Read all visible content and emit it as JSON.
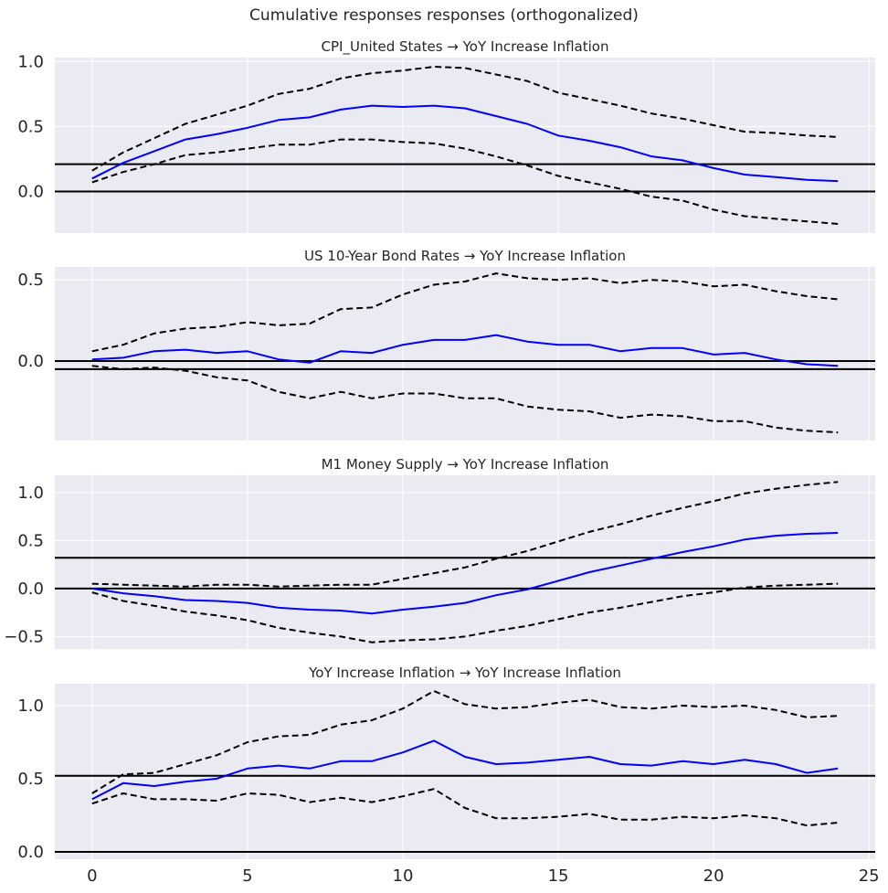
{
  "title": "Cumulative responses responses (orthogonalized)",
  "chart_data": [
    {
      "type": "line",
      "title": "CPI_United States → YoY Increase Inflation",
      "x": [
        0,
        1,
        2,
        3,
        4,
        5,
        6,
        7,
        8,
        9,
        10,
        11,
        12,
        13,
        14,
        15,
        16,
        17,
        18,
        19,
        20,
        21,
        22,
        23,
        24
      ],
      "ylim": [
        -0.32,
        1.03
      ],
      "yticks": [
        0.0,
        0.5,
        1.0
      ],
      "ytick_labels": [
        "0.0",
        "0.5",
        "1.0"
      ],
      "hlines": [
        0.0,
        0.21
      ],
      "series": [
        {
          "role": "response",
          "color": "#0000ff",
          "style": "solid",
          "values": [
            0.1,
            0.22,
            0.31,
            0.4,
            0.44,
            0.49,
            0.55,
            0.57,
            0.63,
            0.66,
            0.65,
            0.66,
            0.64,
            0.58,
            0.52,
            0.43,
            0.39,
            0.34,
            0.27,
            0.24,
            0.18,
            0.13,
            0.11,
            0.09,
            0.08
          ]
        },
        {
          "role": "upper",
          "color": "#000000",
          "style": "dashed",
          "values": [
            0.16,
            0.3,
            0.41,
            0.52,
            0.59,
            0.66,
            0.75,
            0.79,
            0.87,
            0.91,
            0.93,
            0.96,
            0.95,
            0.9,
            0.85,
            0.76,
            0.71,
            0.66,
            0.6,
            0.56,
            0.51,
            0.46,
            0.45,
            0.43,
            0.42
          ]
        },
        {
          "role": "lower",
          "color": "#000000",
          "style": "dashed",
          "values": [
            0.07,
            0.15,
            0.21,
            0.28,
            0.3,
            0.33,
            0.36,
            0.36,
            0.4,
            0.4,
            0.38,
            0.37,
            0.33,
            0.27,
            0.2,
            0.12,
            0.07,
            0.02,
            -0.04,
            -0.07,
            -0.14,
            -0.19,
            -0.21,
            -0.23,
            -0.25
          ]
        }
      ]
    },
    {
      "type": "line",
      "title": "US 10-Year Bond Rates  → YoY Increase Inflation",
      "x": [
        0,
        1,
        2,
        3,
        4,
        5,
        6,
        7,
        8,
        9,
        10,
        11,
        12,
        13,
        14,
        15,
        16,
        17,
        18,
        19,
        20,
        21,
        22,
        23,
        24
      ],
      "ylim": [
        -0.49,
        0.58
      ],
      "yticks": [
        0.0,
        0.5
      ],
      "ytick_labels": [
        "0.0",
        "0.5"
      ],
      "hlines": [
        0.0,
        -0.05
      ],
      "series": [
        {
          "role": "response",
          "color": "#0000ff",
          "style": "solid",
          "values": [
            0.01,
            0.02,
            0.06,
            0.07,
            0.05,
            0.06,
            0.01,
            -0.01,
            0.06,
            0.05,
            0.1,
            0.13,
            0.13,
            0.16,
            0.12,
            0.1,
            0.1,
            0.06,
            0.08,
            0.08,
            0.04,
            0.05,
            0.01,
            -0.02,
            -0.03
          ]
        },
        {
          "role": "upper",
          "color": "#000000",
          "style": "dashed",
          "values": [
            0.06,
            0.1,
            0.17,
            0.2,
            0.21,
            0.24,
            0.22,
            0.23,
            0.32,
            0.33,
            0.41,
            0.47,
            0.49,
            0.54,
            0.51,
            0.5,
            0.51,
            0.48,
            0.5,
            0.49,
            0.46,
            0.47,
            0.43,
            0.4,
            0.38
          ]
        },
        {
          "role": "lower",
          "color": "#000000",
          "style": "dashed",
          "values": [
            -0.03,
            -0.05,
            -0.04,
            -0.06,
            -0.1,
            -0.12,
            -0.19,
            -0.23,
            -0.19,
            -0.23,
            -0.2,
            -0.2,
            -0.23,
            -0.23,
            -0.28,
            -0.3,
            -0.31,
            -0.35,
            -0.33,
            -0.34,
            -0.37,
            -0.37,
            -0.41,
            -0.43,
            -0.44
          ]
        }
      ]
    },
    {
      "type": "line",
      "title": "M1 Money Supply → YoY Increase Inflation",
      "x": [
        0,
        1,
        2,
        3,
        4,
        5,
        6,
        7,
        8,
        9,
        10,
        11,
        12,
        13,
        14,
        15,
        16,
        17,
        18,
        19,
        20,
        21,
        22,
        23,
        24
      ],
      "ylim": [
        -0.63,
        1.18
      ],
      "yticks": [
        -0.5,
        0.0,
        0.5,
        1.0
      ],
      "ytick_labels": [
        "−0.5",
        "0.0",
        "0.5",
        "1.0"
      ],
      "hlines": [
        0.0,
        0.32
      ],
      "series": [
        {
          "role": "response",
          "color": "#0000ff",
          "style": "solid",
          "values": [
            0.0,
            -0.05,
            -0.08,
            -0.12,
            -0.13,
            -0.15,
            -0.2,
            -0.22,
            -0.23,
            -0.26,
            -0.22,
            -0.19,
            -0.15,
            -0.07,
            -0.01,
            0.08,
            0.17,
            0.24,
            0.31,
            0.38,
            0.44,
            0.51,
            0.55,
            0.57,
            0.58
          ]
        },
        {
          "role": "upper",
          "color": "#000000",
          "style": "dashed",
          "values": [
            0.05,
            0.04,
            0.03,
            0.02,
            0.04,
            0.04,
            0.02,
            0.03,
            0.04,
            0.04,
            0.1,
            0.16,
            0.22,
            0.31,
            0.39,
            0.49,
            0.59,
            0.67,
            0.76,
            0.84,
            0.91,
            0.99,
            1.04,
            1.08,
            1.11
          ]
        },
        {
          "role": "lower",
          "color": "#000000",
          "style": "dashed",
          "values": [
            -0.04,
            -0.13,
            -0.18,
            -0.24,
            -0.28,
            -0.33,
            -0.41,
            -0.46,
            -0.5,
            -0.56,
            -0.54,
            -0.53,
            -0.5,
            -0.44,
            -0.39,
            -0.32,
            -0.25,
            -0.2,
            -0.14,
            -0.08,
            -0.04,
            0.01,
            0.03,
            0.04,
            0.05
          ]
        }
      ]
    },
    {
      "type": "line",
      "title": "YoY Increase Inflation → YoY Increase Inflation",
      "x": [
        0,
        1,
        2,
        3,
        4,
        5,
        6,
        7,
        8,
        9,
        10,
        11,
        12,
        13,
        14,
        15,
        16,
        17,
        18,
        19,
        20,
        21,
        22,
        23,
        24
      ],
      "xlim": [
        -1.2,
        25.2
      ],
      "xticks": [
        0,
        5,
        10,
        15,
        20,
        25
      ],
      "ylim": [
        -0.05,
        1.15
      ],
      "yticks": [
        0.0,
        0.5,
        1.0
      ],
      "ytick_labels": [
        "0.0",
        "0.5",
        "1.0"
      ],
      "hlines": [
        0.0,
        0.52
      ],
      "series": [
        {
          "role": "response",
          "color": "#0000ff",
          "style": "solid",
          "values": [
            0.36,
            0.47,
            0.45,
            0.48,
            0.5,
            0.57,
            0.59,
            0.57,
            0.62,
            0.62,
            0.68,
            0.76,
            0.65,
            0.6,
            0.61,
            0.63,
            0.65,
            0.6,
            0.59,
            0.62,
            0.6,
            0.63,
            0.6,
            0.54,
            0.57
          ]
        },
        {
          "role": "upper",
          "color": "#000000",
          "style": "dashed",
          "values": [
            0.4,
            0.53,
            0.54,
            0.6,
            0.66,
            0.75,
            0.79,
            0.8,
            0.87,
            0.9,
            0.98,
            1.1,
            1.01,
            0.98,
            0.99,
            1.02,
            1.04,
            0.99,
            0.98,
            1.0,
            0.99,
            1.0,
            0.97,
            0.92,
            0.93
          ]
        },
        {
          "role": "lower",
          "color": "#000000",
          "style": "dashed",
          "values": [
            0.33,
            0.4,
            0.36,
            0.36,
            0.35,
            0.4,
            0.39,
            0.34,
            0.37,
            0.34,
            0.38,
            0.43,
            0.3,
            0.23,
            0.23,
            0.24,
            0.26,
            0.22,
            0.22,
            0.24,
            0.23,
            0.25,
            0.23,
            0.18,
            0.2
          ]
        }
      ]
    }
  ]
}
